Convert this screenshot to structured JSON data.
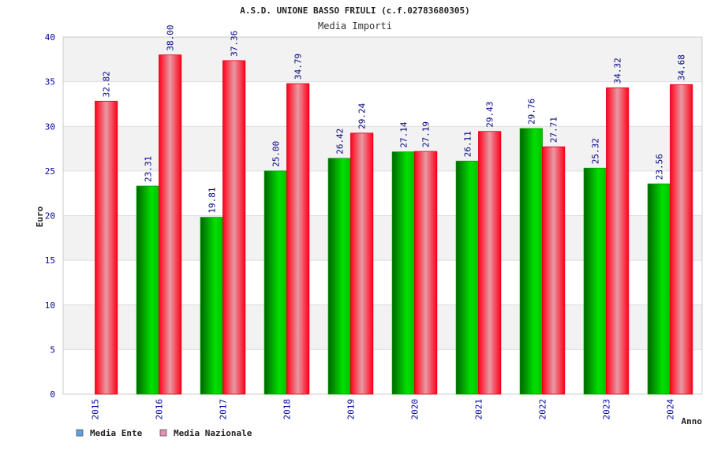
{
  "chart_data": {
    "type": "bar",
    "title": "A.S.D. UNIONE BASSO FRIULI (c.f.02783680305)",
    "subtitle": "Media Importi",
    "xlabel": "Anno",
    "ylabel": "Euro",
    "ylim": [
      0,
      40
    ],
    "yticks": [
      0,
      5,
      10,
      15,
      20,
      25,
      30,
      35,
      40
    ],
    "categories": [
      "2015",
      "2016",
      "2017",
      "2018",
      "2019",
      "2020",
      "2021",
      "2022",
      "2023",
      "2024"
    ],
    "series": [
      {
        "name": "Media Ente",
        "color": "#00b000",
        "legend_color": "#5ea0e8",
        "values": [
          null,
          23.31,
          19.81,
          25.0,
          26.42,
          27.14,
          26.11,
          29.76,
          25.32,
          23.56
        ],
        "labels": [
          "",
          "23.31",
          "19.81",
          "25.00",
          "26.42",
          "27.14",
          "26.11",
          "29.76",
          "25.32",
          "23.56"
        ]
      },
      {
        "name": "Media Nazionale",
        "color": "#f00020",
        "legend_color": "#e58fb5",
        "values": [
          32.82,
          38.0,
          37.36,
          34.79,
          29.24,
          27.19,
          29.43,
          27.71,
          34.32,
          34.68
        ],
        "labels": [
          "32.82",
          "38.00",
          "37.36",
          "34.79",
          "29.24",
          "27.19",
          "29.43",
          "27.71",
          "34.32",
          "34.68"
        ]
      }
    ],
    "grid": true,
    "legend_position": "bottom-left"
  }
}
